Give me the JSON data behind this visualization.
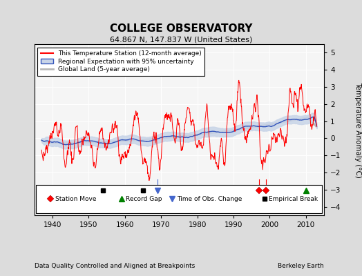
{
  "title": "COLLEGE OBSERVATORY",
  "subtitle": "64.867 N, 147.837 W (United States)",
  "ylabel": "Temperature Anomaly (°C)",
  "footer_left": "Data Quality Controlled and Aligned at Breakpoints",
  "footer_right": "Berkeley Earth",
  "xlim": [
    1935,
    2015
  ],
  "ylim": [
    -4.5,
    5.5
  ],
  "yticks": [
    -4,
    -3,
    -2,
    -1,
    0,
    1,
    2,
    3,
    4,
    5
  ],
  "xticks": [
    1940,
    1950,
    1960,
    1970,
    1980,
    1990,
    2000,
    2010
  ],
  "bg_color": "#dcdcdc",
  "plot_bg_color": "#f5f5f5",
  "station_moves": [
    1997.0,
    1999.0
  ],
  "record_gaps": [
    2010.0
  ],
  "obs_changes": [
    1969.0
  ],
  "empirical_breaks": [
    1954.0,
    1965.0
  ],
  "station_move_vlines": [
    1997.0,
    1999.0
  ],
  "obs_change_vlines": [
    1969.0
  ],
  "marker_y": -3.05,
  "legend_labels": [
    "This Temperature Station (12-month average)",
    "Regional Expectation with 95% uncertainty",
    "Global Land (5-year average)"
  ]
}
